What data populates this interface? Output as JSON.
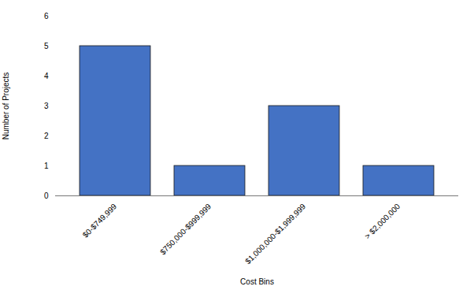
{
  "chart_data": {
    "type": "bar",
    "categories": [
      "$0-$749,999",
      "$750,000-$999,999",
      "$1,000,000-$1,999,999",
      "> $2,000,000"
    ],
    "values": [
      5,
      1,
      3,
      1
    ],
    "color": "#4472C4",
    "xlabel": "Cost Bins",
    "ylabel": "Number of Projects",
    "ylim": [
      0,
      6
    ],
    "yticks": [
      0,
      1,
      2,
      3,
      4,
      5,
      6
    ],
    "grid": false
  }
}
